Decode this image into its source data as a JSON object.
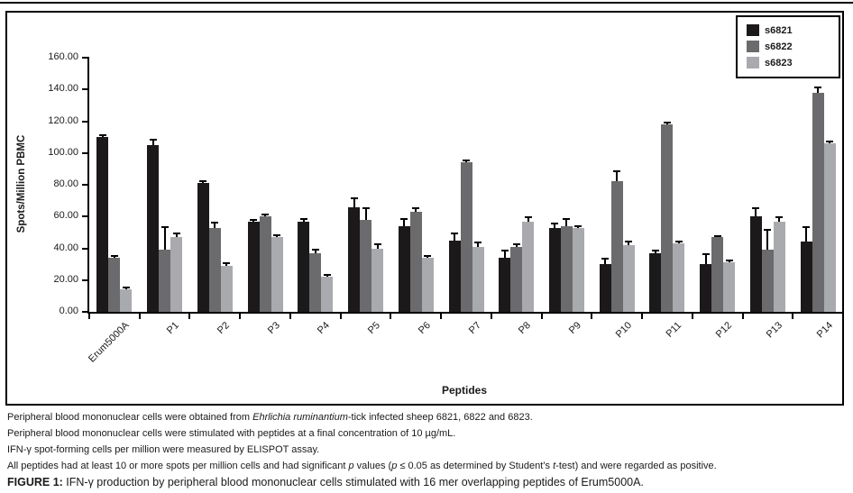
{
  "chart_data": {
    "type": "bar",
    "title": "",
    "xlabel": "Peptides",
    "ylabel": "Spots/Million PBMC",
    "ylim": [
      0,
      160
    ],
    "ytick_step": 20,
    "ytick_labels": [
      "0.00",
      "20.00",
      "40.00",
      "60.00",
      "80.00",
      "100.00",
      "120.00",
      "140.00",
      "160.00"
    ],
    "grid": false,
    "legend_position": "top-right",
    "x_tick_label_rotation": 45,
    "error_bars": "upper",
    "categories": [
      "Erum5000A",
      "P1",
      "P2",
      "P3",
      "P4",
      "P5",
      "P6",
      "P7",
      "P8",
      "P9",
      "P10",
      "P11",
      "P12",
      "P13",
      "P14"
    ],
    "series": [
      {
        "name": "s6821",
        "color": "#1c191a",
        "values": [
          110,
          105,
          81,
          57,
          57,
          66,
          54,
          45,
          34,
          53,
          30,
          37,
          30,
          60,
          44
        ],
        "errors": [
          2,
          4,
          2,
          1.5,
          2,
          6,
          5,
          5,
          5,
          3,
          4,
          2,
          7,
          6,
          10
        ]
      },
      {
        "name": "s6822",
        "color": "#6b6a6d",
        "values": [
          34,
          39,
          53,
          60,
          37,
          58,
          63,
          94,
          41,
          54,
          82,
          118,
          47,
          39,
          138
        ],
        "errors": [
          2,
          15,
          4,
          2,
          3,
          8,
          3,
          2,
          2,
          5,
          7,
          2,
          1.5,
          13,
          4
        ]
      },
      {
        "name": "s6823",
        "color": "#a9aaad",
        "values": [
          14,
          47,
          29,
          47,
          22,
          40,
          34,
          41,
          57,
          53,
          42,
          43,
          31,
          57,
          106
        ],
        "errors": [
          2,
          3,
          2,
          2,
          2,
          3,
          2,
          3,
          3,
          1.5,
          3,
          2,
          2,
          3,
          2
        ]
      }
    ]
  },
  "caption": {
    "lines": [
      {
        "segments": [
          {
            "t": "Peripheral blood mononuclear cells were obtained from "
          },
          {
            "t": "Ehrlichia ruminantium",
            "i": true
          },
          {
            "t": "-tick infected sheep 6821, 6822 and 6823."
          }
        ]
      },
      {
        "segments": [
          {
            "t": "Peripheral blood mononuclear cells were stimulated with peptides at a final concentration of 10 µg/mL."
          }
        ]
      },
      {
        "segments": [
          {
            "t": "IFN-γ spot-forming cells per million were measured by ELISPOT assay."
          }
        ]
      },
      {
        "segments": [
          {
            "t": "All peptides had at least 10 or more spots per million cells and had significant "
          },
          {
            "t": "p",
            "i": true
          },
          {
            "t": " values ("
          },
          {
            "t": "p",
            "i": true
          },
          {
            "t": " ≤ 0.05 as determined by Student’s "
          },
          {
            "t": "t",
            "i": true
          },
          {
            "t": "-test) and were regarded as positive."
          }
        ]
      },
      {
        "big": true,
        "segments": [
          {
            "t": "FIGURE 1:",
            "b": true
          },
          {
            "t": " IFN-γ production by peripheral blood mononuclear cells stimulated with 16 mer overlapping peptides of Erum5000A."
          }
        ]
      }
    ]
  }
}
